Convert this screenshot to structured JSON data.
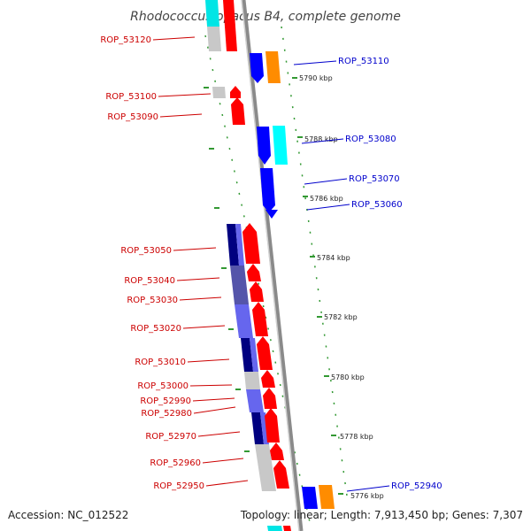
{
  "title": "Rhodococcus opacus B4, complete genome",
  "accession": "Accession: NC_012522",
  "summary": "Topology: linear; Length: 7,913,450 bp; Genes: 7,307",
  "colors": {
    "red": "#ff0000",
    "gray": "#c8c8c8",
    "blue": "#0000ff",
    "cyan": "#00ffff",
    "orange": "#ff8c00",
    "navy": "#000080",
    "medium_blue": "#6666ee",
    "slate_blue": "#5555aa",
    "label_red": "#cc0000",
    "label_blue": "#0000cc",
    "axis": "#9a9a9a",
    "tick": "#339933"
  },
  "scale_labels": [
    "5790 kbp",
    "5788 kbp",
    "5786 kbp",
    "5784 kbp",
    "5782 kbp",
    "5780 kbp",
    "5778 kbp",
    "5776 kbp"
  ],
  "left_labels": [
    "ROP_53120",
    "ROP_53100",
    "ROP_53090",
    "ROP_53050",
    "ROP_53040",
    "ROP_53030",
    "ROP_53020",
    "ROP_53010",
    "ROP_53000",
    "ROP_52990",
    "ROP_52980",
    "ROP_52970",
    "ROP_52960",
    "ROP_52950"
  ],
  "right_labels": [
    "ROP_53110",
    "ROP_53080",
    "ROP_53070",
    "ROP_53060",
    "ROP_52940"
  ]
}
